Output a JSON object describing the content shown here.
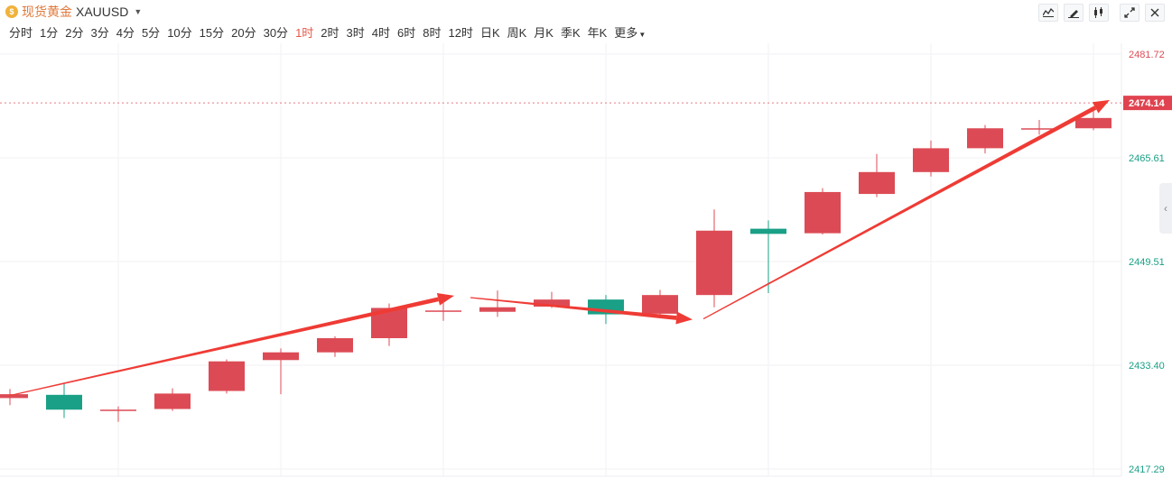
{
  "header": {
    "symbol_name": "现货黄金",
    "symbol_code": "XAUUSD",
    "coin_icon": "gold-coin-icon"
  },
  "toolbar": {
    "icons": [
      "indicator-icon",
      "draw-icon",
      "candle-style-icon",
      "fullscreen-icon",
      "close-icon"
    ]
  },
  "periods": [
    "分时",
    "1分",
    "2分",
    "3分",
    "4分",
    "5分",
    "10分",
    "15分",
    "20分",
    "30分",
    "1时",
    "2时",
    "3时",
    "4时",
    "6时",
    "8时",
    "12时",
    "日K",
    "周K",
    "月K",
    "季K",
    "年K"
  ],
  "active_period": "1时",
  "more_label": "更多",
  "colors": {
    "up": "#dc4b55",
    "down": "#1aa086",
    "arrow": "#ef3b35",
    "current_price_bg": "#e0434f"
  },
  "chart_data": {
    "type": "candlestick",
    "y_ticks": [
      "2481.72",
      "2465.61",
      "2449.51",
      "2433.40",
      "2417.29"
    ],
    "ylim": [
      2417.29,
      2481.72
    ],
    "current_price": "2474.14",
    "candles": [
      {
        "o": 2428.3,
        "c": 2428.9,
        "h": 2429.7,
        "l": 2427.2
      },
      {
        "o": 2428.8,
        "c": 2426.5,
        "h": 2430.5,
        "l": 2425.2
      },
      {
        "o": 2426.4,
        "c": 2426.5,
        "h": 2427.0,
        "l": 2424.6
      },
      {
        "o": 2426.6,
        "c": 2429.0,
        "h": 2429.8,
        "l": 2426.3
      },
      {
        "o": 2429.4,
        "c": 2434.0,
        "h": 2434.3,
        "l": 2429.0
      },
      {
        "o": 2434.2,
        "c": 2435.4,
        "h": 2436.0,
        "l": 2428.9
      },
      {
        "o": 2435.4,
        "c": 2437.6,
        "h": 2437.9,
        "l": 2434.7
      },
      {
        "o": 2437.6,
        "c": 2442.3,
        "h": 2443.0,
        "l": 2436.4
      },
      {
        "o": 2441.7,
        "c": 2441.9,
        "h": 2443.8,
        "l": 2440.3
      },
      {
        "o": 2441.7,
        "c": 2442.4,
        "h": 2445.0,
        "l": 2440.9
      },
      {
        "o": 2442.5,
        "c": 2443.6,
        "h": 2444.8,
        "l": 2442.3
      },
      {
        "o": 2443.6,
        "c": 2441.3,
        "h": 2444.3,
        "l": 2439.8
      },
      {
        "o": 2441.4,
        "c": 2444.3,
        "h": 2445.1,
        "l": 2441.1
      },
      {
        "o": 2444.3,
        "c": 2454.3,
        "h": 2457.6,
        "l": 2442.4
      },
      {
        "o": 2454.6,
        "c": 2453.8,
        "h": 2455.9,
        "l": 2444.6
      },
      {
        "o": 2453.9,
        "c": 2460.3,
        "h": 2460.9,
        "l": 2453.7
      },
      {
        "o": 2460.0,
        "c": 2463.4,
        "h": 2466.2,
        "l": 2459.5
      },
      {
        "o": 2463.4,
        "c": 2467.1,
        "h": 2468.3,
        "l": 2462.7
      },
      {
        "o": 2467.1,
        "c": 2470.2,
        "h": 2470.7,
        "l": 2466.3
      },
      {
        "o": 2470.0,
        "c": 2470.2,
        "h": 2471.5,
        "l": 2469.2
      },
      {
        "o": 2470.2,
        "c": 2471.8,
        "h": 2473.1,
        "l": 2469.9
      }
    ],
    "annotations": [
      {
        "type": "arrow",
        "from": [
          0,
          2428.7
        ],
        "to": [
          8.2,
          2444.2
        ]
      },
      {
        "type": "arrow",
        "from": [
          8.5,
          2443.9
        ],
        "to": [
          12.6,
          2440.5
        ]
      },
      {
        "type": "arrow",
        "from": [
          12.8,
          2440.6
        ],
        "to": [
          20.3,
          2474.6
        ]
      }
    ]
  }
}
